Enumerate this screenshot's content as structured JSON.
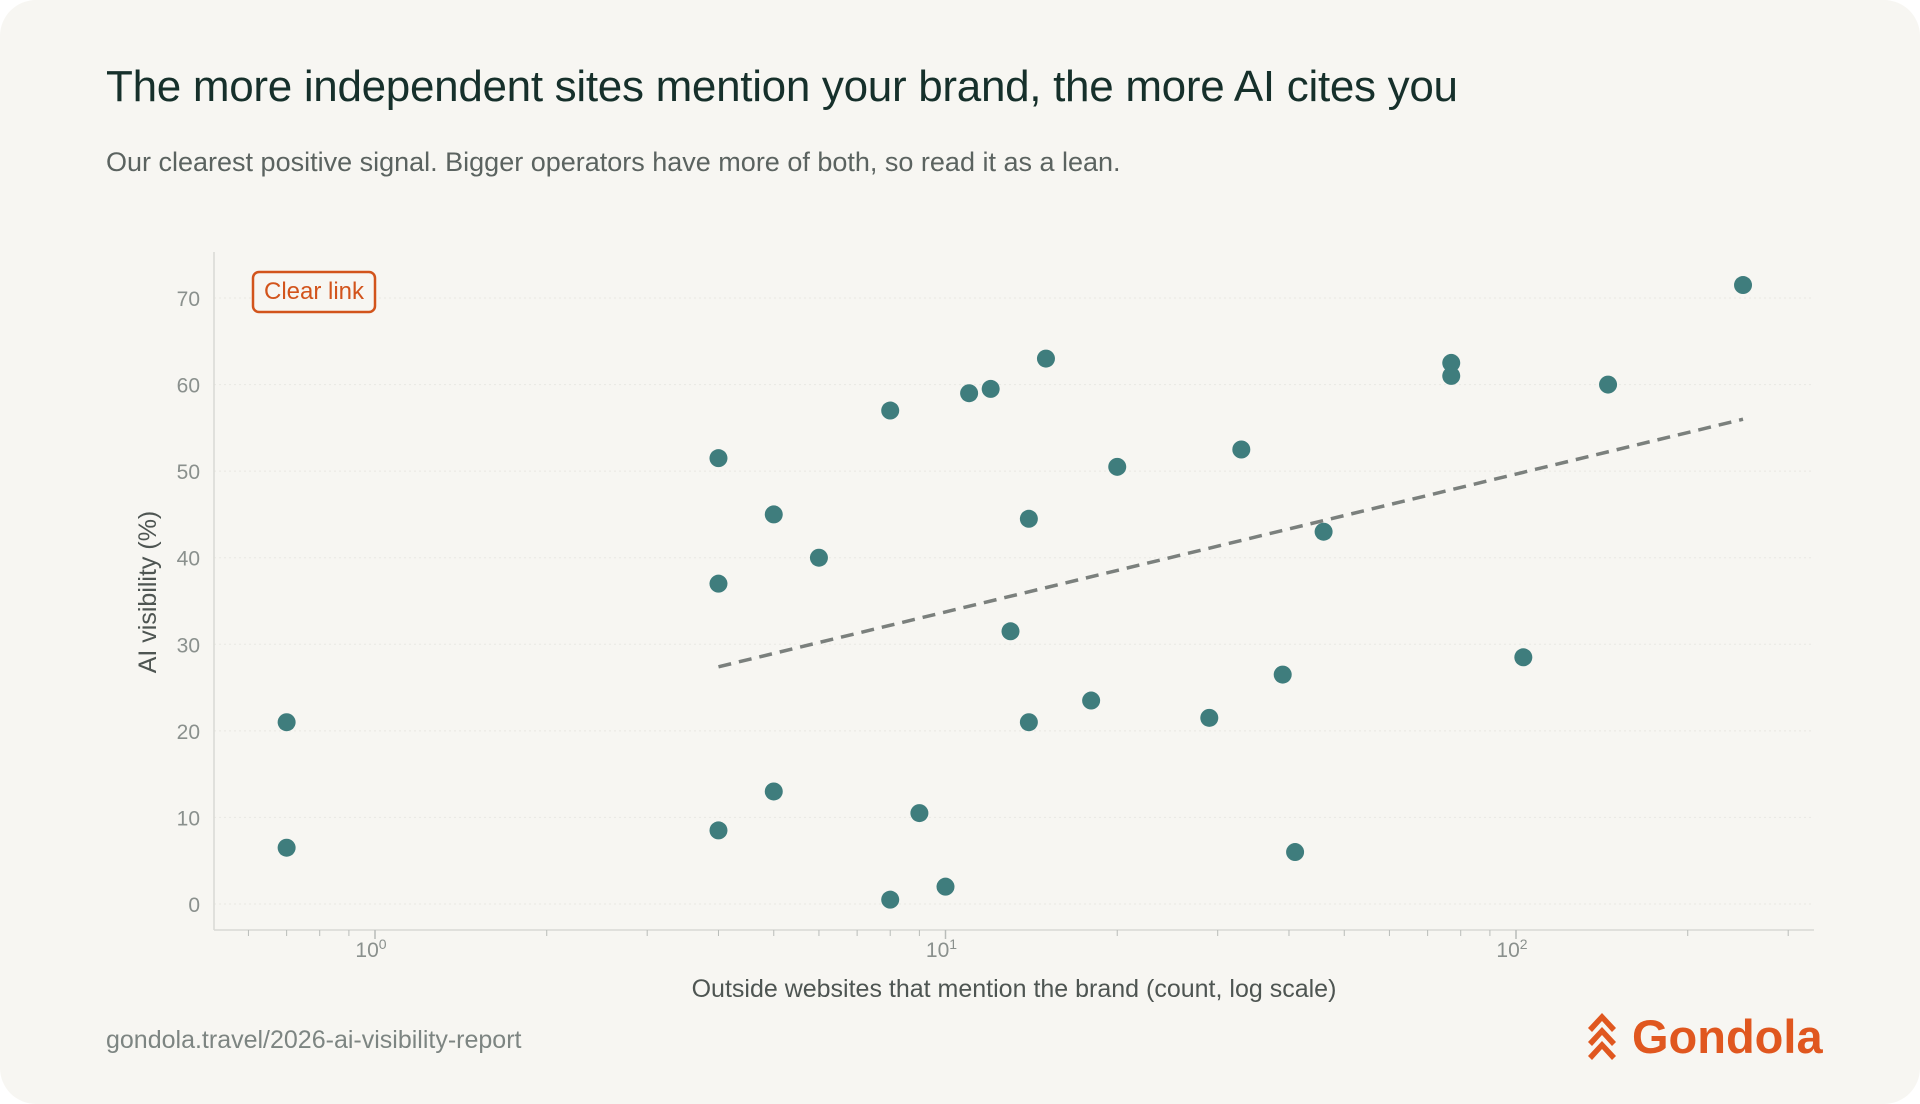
{
  "title": "The more independent sites mention your brand, the more AI cites you",
  "subtitle": "Our clearest positive signal. Bigger operators have more of both, so read it as a lean.",
  "footer": {
    "url": "gondola.travel/2026-ai-visibility-report",
    "brand_name": "Gondola",
    "logo_icon": "gondola-chevrons-icon"
  },
  "colors": {
    "background": "#f7f6f2",
    "point": "#3f7d7d",
    "trend": "#7b807d",
    "accent": "#e0571f",
    "title": "#16302b"
  },
  "chart_data": {
    "type": "scatter",
    "title": "The more independent sites mention your brand, the more AI cites you",
    "subtitle": "Our clearest positive signal. Bigger operators have more of both, so read it as a lean.",
    "xlabel": "Outside websites that mention the brand (count, log scale)",
    "ylabel": "AI visibility (%)",
    "x_scale": "log",
    "xlim": [
      0.55,
      310
    ],
    "ylim": [
      -3,
      78
    ],
    "x_ticks": [
      {
        "value": 1,
        "base": "10",
        "exp": "0"
      },
      {
        "value": 10,
        "base": "10",
        "exp": "1"
      },
      {
        "value": 100,
        "base": "10",
        "exp": "2"
      }
    ],
    "y_ticks": [
      0,
      10,
      20,
      30,
      40,
      50,
      60,
      70
    ],
    "grid": "horizontal",
    "annotation": "Clear link",
    "trend_line": {
      "x_start": 4,
      "x_end": 250,
      "y_start": 27.4,
      "y_end": 56
    },
    "points": [
      {
        "x": 0.7,
        "y": 21
      },
      {
        "x": 0.7,
        "y": 6.5
      },
      {
        "x": 4,
        "y": 51.5
      },
      {
        "x": 4,
        "y": 37
      },
      {
        "x": 4,
        "y": 8.5
      },
      {
        "x": 5,
        "y": 45
      },
      {
        "x": 5,
        "y": 13
      },
      {
        "x": 6,
        "y": 40
      },
      {
        "x": 8,
        "y": 57
      },
      {
        "x": 8,
        "y": 0.5
      },
      {
        "x": 9,
        "y": 10.5
      },
      {
        "x": 10,
        "y": 2
      },
      {
        "x": 11,
        "y": 59
      },
      {
        "x": 12,
        "y": 59.5
      },
      {
        "x": 13,
        "y": 31.5
      },
      {
        "x": 14,
        "y": 44.5
      },
      {
        "x": 14,
        "y": 21
      },
      {
        "x": 15,
        "y": 63
      },
      {
        "x": 18,
        "y": 23.5
      },
      {
        "x": 20,
        "y": 50.5
      },
      {
        "x": 29,
        "y": 21.5
      },
      {
        "x": 33,
        "y": 52.5
      },
      {
        "x": 39,
        "y": 26.5
      },
      {
        "x": 41,
        "y": 6
      },
      {
        "x": 46,
        "y": 43
      },
      {
        "x": 77,
        "y": 62.5
      },
      {
        "x": 77,
        "y": 61
      },
      {
        "x": 103,
        "y": 28.5
      },
      {
        "x": 145,
        "y": 60
      },
      {
        "x": 250,
        "y": 71.5
      }
    ]
  }
}
